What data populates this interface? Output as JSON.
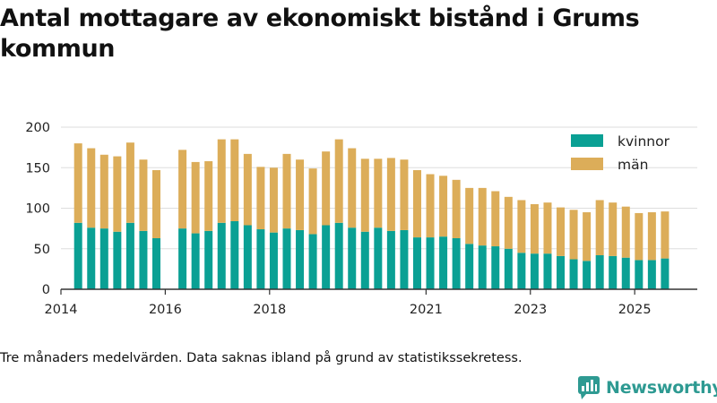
{
  "title": "Antal mottagare av ekonomiskt bistånd i Grums kommun",
  "footnote": "Tre månaders medelvärden. Data saknas ibland på grund av statistikssekretess.",
  "brand": {
    "name": "Newsworthy",
    "icon": "newsworthy-logo-icon",
    "color": "#2e9a92"
  },
  "colors": {
    "kvinnor": "#0aa094",
    "man": "#dcad59",
    "axis": "#333333",
    "grid": "#dddddd"
  },
  "chart_data": {
    "type": "bar",
    "stacked": true,
    "title": "Antal mottagare av ekonomiskt bistånd i Grums kommun",
    "xlabel": "",
    "ylabel": "",
    "ylim": [
      0,
      200
    ],
    "xlim": [
      2014.0,
      2026.2
    ],
    "y_ticks": [
      0,
      50,
      100,
      150,
      200
    ],
    "x_ticks": [
      2014,
      2016,
      2018,
      2021,
      2023,
      2025
    ],
    "legend": {
      "placement": "top-right",
      "entries": [
        "kvinnor",
        "män"
      ]
    },
    "x": [
      2014.33,
      2014.58,
      2014.83,
      2015.08,
      2015.33,
      2015.58,
      2015.83,
      2016.33,
      2016.58,
      2016.83,
      2017.08,
      2017.33,
      2017.58,
      2017.83,
      2018.08,
      2018.33,
      2018.58,
      2018.83,
      2019.08,
      2019.33,
      2019.58,
      2019.83,
      2020.08,
      2020.33,
      2020.58,
      2020.83,
      2021.08,
      2021.33,
      2021.58,
      2021.83,
      2022.08,
      2022.33,
      2022.58,
      2022.83,
      2023.08,
      2023.33,
      2023.58,
      2023.83,
      2024.08,
      2024.33,
      2024.58,
      2024.83,
      2025.08,
      2025.33,
      2025.58
    ],
    "series": [
      {
        "name": "kvinnor",
        "values": [
          82,
          76,
          75,
          71,
          82,
          72,
          63,
          75,
          69,
          72,
          82,
          84,
          79,
          74,
          70,
          75,
          73,
          68,
          79,
          82,
          76,
          71,
          76,
          72,
          73,
          64,
          64,
          65,
          63,
          56,
          54,
          53,
          50,
          45,
          44,
          44,
          41,
          37,
          35,
          42,
          41,
          39,
          36,
          36,
          38
        ]
      },
      {
        "name": "män",
        "values": [
          98,
          98,
          91,
          93,
          99,
          88,
          84,
          97,
          88,
          86,
          103,
          101,
          88,
          77,
          80,
          92,
          87,
          81,
          91,
          103,
          98,
          90,
          85,
          90,
          87,
          83,
          78,
          75,
          72,
          69,
          71,
          68,
          64,
          65,
          61,
          63,
          60,
          61,
          60,
          68,
          66,
          63,
          58,
          59,
          58
        ]
      }
    ]
  }
}
